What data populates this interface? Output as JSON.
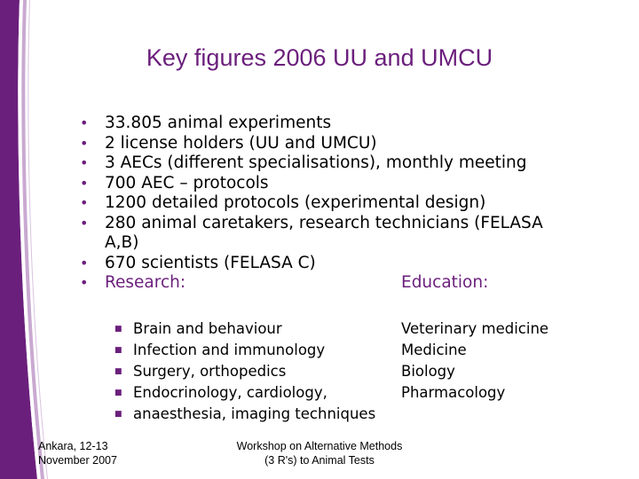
{
  "slide": {
    "title": "Key figures 2006 UU and UMCU",
    "bullets": [
      "33.805 animal experiments",
      "2 license holders (UU and UMCU)",
      "3 AECs (different specialisations), monthly meeting",
      "700 AEC – protocols",
      "1200 detailed protocols (experimental design)",
      "280 animal caretakers, research technicians (FELASA A,B)",
      "670 scientists (FELASA C)"
    ],
    "research_label": "Research:",
    "education_label": "Education:",
    "research_items": [
      "Brain and behaviour",
      "Infection and immunology",
      "Surgery, orthopedics",
      "Endocrinology, cardiology,",
      "anaesthesia, imaging techniques"
    ],
    "education_items": [
      "Veterinary medicine",
      "Medicine",
      "Biology",
      "Pharmacology"
    ]
  },
  "footer": {
    "left_line1": "Ankara, 12-13",
    "left_line2": "November 2007",
    "center_line1": "Workshop on Alternative Methods",
    "center_line2": "(3 R's) to Animal Tests"
  },
  "colors": {
    "accent": "#6b1f7c",
    "accent_light": "#8b3a98",
    "stripe_light": "#d9c3df"
  }
}
